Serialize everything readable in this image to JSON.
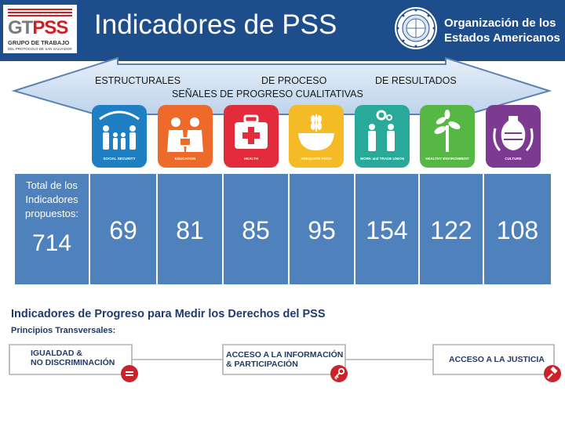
{
  "header": {
    "title": "Indicadores de PSS",
    "gt_logo": {
      "gt": "GT",
      "pss": "PSS",
      "line1": "GRUPO DE TRABAJO",
      "line2": "DEL PROTOCOLO DE SAN SALVADOR"
    },
    "oas": {
      "line1": "Organización de los",
      "line2": "Estados Americanos"
    }
  },
  "categories": {
    "structural": "ESTRUCTURALES",
    "process": "DE PROCESO",
    "results": "DE RESULTADOS",
    "qualitative": "SEÑALES DE PROGRESO CUALITATIVAS"
  },
  "rights": [
    {
      "label": "SOCIAL SECURITY",
      "icon": "social-security-icon",
      "color": "#1e7fc3"
    },
    {
      "label": "EDUCATION",
      "icon": "education-icon",
      "color": "#ee6a2a"
    },
    {
      "label": "HEALTH",
      "icon": "health-icon",
      "color": "#e22b3b"
    },
    {
      "label": "ADEQUATE FOOD",
      "icon": "food-icon",
      "color": "#f5bb27"
    },
    {
      "label": "WORK and TRADE UNION",
      "icon": "work-icon",
      "color": "#28a999"
    },
    {
      "label": "HEALTHY ENVIRONMENT",
      "icon": "environment-icon",
      "color": "#56b745"
    },
    {
      "label": "CULTURE",
      "icon": "culture-icon",
      "color": "#7c3a91"
    }
  ],
  "totals": {
    "label": "Total de los Indicadores propuestos:",
    "value": "714"
  },
  "counts": [
    "69",
    "81",
    "85",
    "95",
    "154",
    "122",
    "108"
  ],
  "bottom": {
    "title": "Indicadores de Progreso para Medir los Derechos del PSS",
    "subtitle": "Principios Transversales:",
    "principles": [
      {
        "line1": "IGUALDAD &",
        "line2": "NO DISCRIMINACIÓN",
        "icon": "equal-icon"
      },
      {
        "line1": "ACCESO A LA INFORMACIÓN",
        "line2": "& PARTICIPACIÓN",
        "icon": "key-icon"
      },
      {
        "line1": "ACCESO A LA JUSTICIA",
        "line2": "",
        "icon": "gavel-icon"
      }
    ]
  },
  "colors": {
    "header_bg": "#1e4d8c",
    "cell_bg": "#4f81bd",
    "accent_red": "#c9242b",
    "arrow_fill": "#cfe0f3"
  }
}
